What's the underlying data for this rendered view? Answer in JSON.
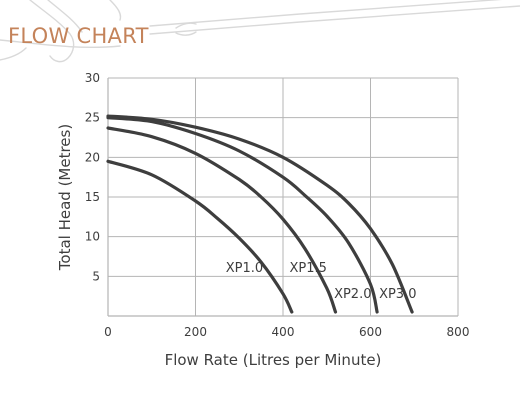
{
  "header": {
    "title": "FLOW CHART"
  },
  "chart_data": {
    "type": "line",
    "xlabel": "Flow Rate (Litres per Minute)",
    "ylabel": "Total Head (Metres)",
    "xlim": [
      0,
      800
    ],
    "ylim": [
      0,
      30
    ],
    "xticks": [
      0,
      200,
      400,
      600,
      800
    ],
    "yticks": [
      5,
      10,
      15,
      20,
      25,
      30
    ],
    "grid": true,
    "legend": "none (curves labelled inline)",
    "series": [
      {
        "name": "XP1.0",
        "x": [
          0,
          100,
          200,
          250,
          300,
          350,
          400,
          420
        ],
        "y": [
          19.5,
          17.8,
          14.5,
          12.3,
          9.8,
          6.8,
          2.8,
          0.5
        ]
      },
      {
        "name": "XP1.5",
        "x": [
          0,
          100,
          200,
          300,
          350,
          400,
          450,
          500,
          520
        ],
        "y": [
          23.7,
          22.6,
          20.5,
          17.2,
          15,
          12.2,
          8.5,
          3.5,
          0.5
        ]
      },
      {
        "name": "XP2.0",
        "x": [
          0,
          100,
          200,
          300,
          400,
          450,
          500,
          550,
          600,
          615
        ],
        "y": [
          25,
          24.5,
          23,
          20.8,
          17.5,
          15.2,
          12.6,
          9.2,
          4,
          0.5
        ]
      },
      {
        "name": "XP3.0",
        "x": [
          0,
          100,
          200,
          300,
          400,
          500,
          550,
          600,
          650,
          695
        ],
        "y": [
          25.2,
          24.8,
          23.8,
          22.3,
          20,
          16.5,
          14.2,
          11,
          6.5,
          0.5
        ]
      }
    ]
  },
  "colors": {
    "title": "#c4835a",
    "curves": "#3e3e3e",
    "grid": "#b5b5b5",
    "text": "#3e3e3e"
  }
}
